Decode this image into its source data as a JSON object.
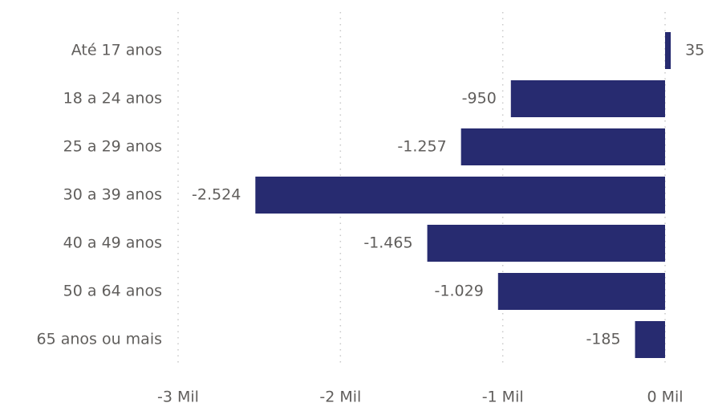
{
  "chart_data": {
    "type": "bar",
    "orientation": "horizontal",
    "categories": [
      "Até 17 anos",
      "18 a 24 anos",
      "25 a 29 anos",
      "30 a 39 anos",
      "40 a 49 anos",
      "50 a 64 anos",
      "65 anos ou mais"
    ],
    "values": [
      35,
      -950,
      -1257,
      -2524,
      -1465,
      -1029,
      -185
    ],
    "value_labels": [
      "35",
      "-950",
      "-1.257",
      "-2.524",
      "-1.465",
      "-1.029",
      "-185"
    ],
    "color": "#272b70",
    "xlim": [
      -3000,
      0
    ],
    "xticks": [
      {
        "value": -3000,
        "label": "-3 Mil"
      },
      {
        "value": -2000,
        "label": "-2 Mil"
      },
      {
        "value": -1000,
        "label": "-1 Mil"
      },
      {
        "value": 0,
        "label": "0 Mil"
      }
    ],
    "grid": true
  }
}
